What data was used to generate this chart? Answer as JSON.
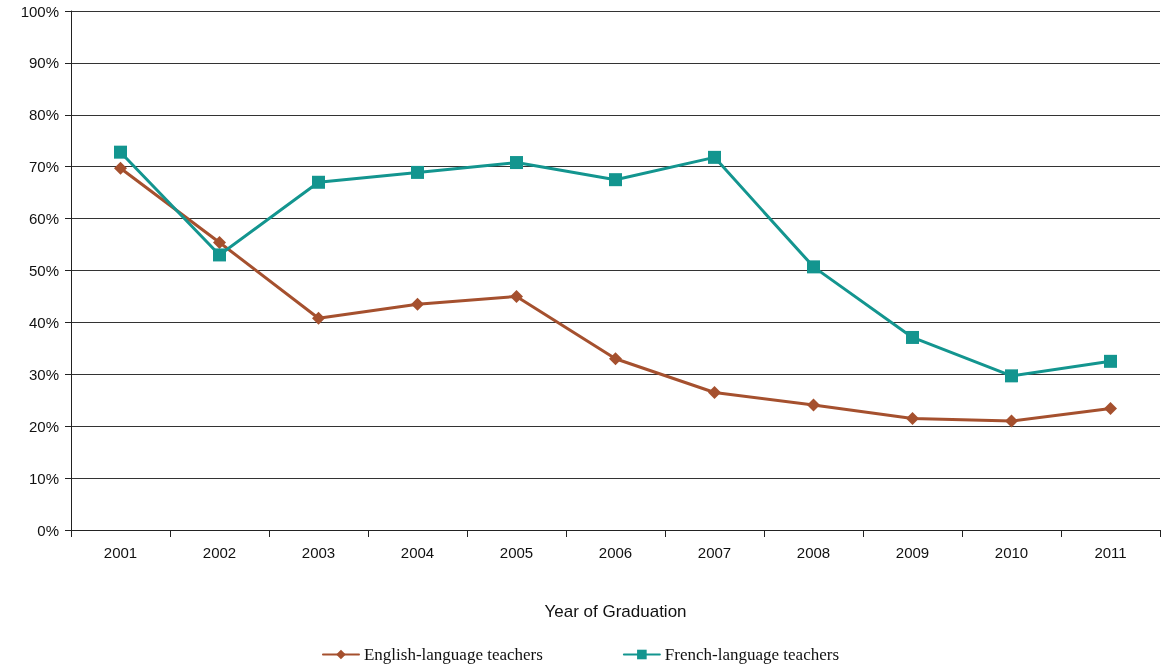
{
  "chart_data": {
    "type": "line",
    "categories": [
      "2001",
      "2002",
      "2003",
      "2004",
      "2005",
      "2006",
      "2007",
      "2008",
      "2009",
      "2010",
      "2011"
    ],
    "series": [
      {
        "name": "English-language teachers",
        "color": "#a5502e",
        "marker": "diamond",
        "values": [
          69.7,
          55.4,
          40.8,
          43.5,
          45.0,
          33.0,
          26.5,
          24.1,
          21.5,
          21.0,
          23.4
        ]
      },
      {
        "name": "French-language teachers",
        "color": "#13958f",
        "marker": "square",
        "values": [
          72.8,
          53.0,
          67.0,
          68.9,
          70.8,
          67.5,
          71.8,
          50.7,
          37.1,
          29.7,
          32.5
        ]
      }
    ],
    "xlabel": "Year of Graduation",
    "ylim": [
      0,
      100
    ],
    "yticks": [
      {
        "value": 0,
        "label": "0%"
      },
      {
        "value": 10,
        "label": "10%"
      },
      {
        "value": 20,
        "label": "20%"
      },
      {
        "value": 30,
        "label": "30%"
      },
      {
        "value": 40,
        "label": "40%"
      },
      {
        "value": 50,
        "label": "50%"
      },
      {
        "value": 60,
        "label": "60%"
      },
      {
        "value": 70,
        "label": "70%"
      },
      {
        "value": 80,
        "label": "80%"
      },
      {
        "value": 90,
        "label": "90%"
      },
      {
        "value": 100,
        "label": "100%"
      }
    ],
    "grid": "y",
    "legend": "bottom",
    "line_style": "solid"
  }
}
